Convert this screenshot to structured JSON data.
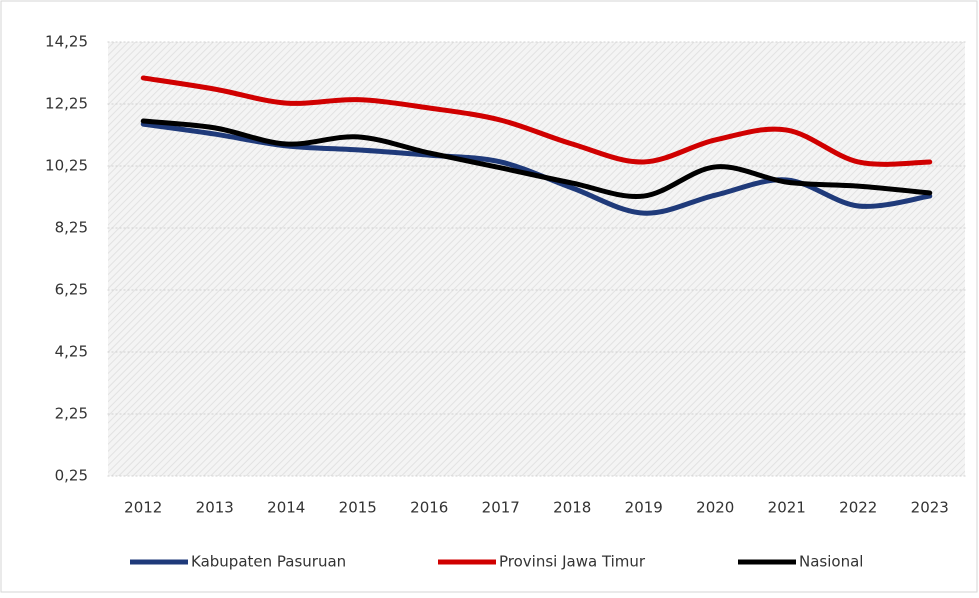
{
  "chart_data": {
    "type": "line",
    "smooth": true,
    "grid": true,
    "categories": [
      "2012",
      "2013",
      "2014",
      "2015",
      "2016",
      "2017",
      "2018",
      "2019",
      "2020",
      "2021",
      "2022",
      "2023"
    ],
    "series": [
      {
        "name": "Kabupaten Pasuruan",
        "color": "#1f3a7a",
        "values": [
          11.6,
          11.28,
          10.9,
          10.77,
          10.6,
          10.38,
          9.54,
          8.73,
          9.31,
          9.8,
          8.96,
          9.28
        ]
      },
      {
        "name": "Provinsi Jawa Timur",
        "color": "#d00000",
        "values": [
          13.09,
          12.73,
          12.28,
          12.39,
          12.12,
          11.73,
          10.96,
          10.38,
          11.09,
          11.41,
          10.38,
          10.38
        ]
      },
      {
        "name": "Nasional",
        "color": "#000000",
        "values": [
          11.7,
          11.48,
          10.96,
          11.19,
          10.67,
          10.19,
          9.7,
          9.28,
          10.22,
          9.73,
          9.6,
          9.38
        ]
      }
    ],
    "ylim": [
      0.25,
      14.25
    ],
    "yticks": [
      {
        "value": 0.25,
        "label": "0,25"
      },
      {
        "value": 2.25,
        "label": "2,25"
      },
      {
        "value": 4.25,
        "label": "4,25"
      },
      {
        "value": 6.25,
        "label": "6,25"
      },
      {
        "value": 8.25,
        "label": "8,25"
      },
      {
        "value": 10.25,
        "label": "10,25"
      },
      {
        "value": 12.25,
        "label": "12,25"
      },
      {
        "value": 14.25,
        "label": "14,25"
      }
    ],
    "legend": "bottom"
  }
}
